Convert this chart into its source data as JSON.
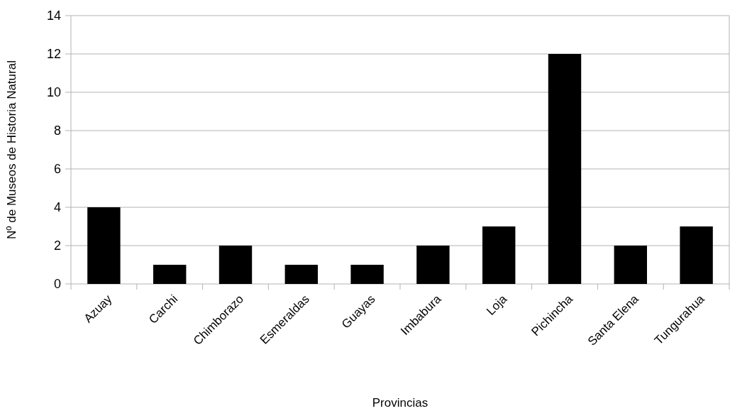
{
  "chart_data": {
    "type": "bar",
    "xlabel": "Provincias",
    "ylabel": "Nº de Museos de Historia Natural",
    "categories": [
      "Azuay",
      "Carchi",
      "Chimborazo",
      "Esmeraldas",
      "Guayas",
      "Imbabura",
      "Loja",
      "Pichincha",
      "Santa Elena",
      "Tungurahua"
    ],
    "values": [
      4,
      1,
      2,
      1,
      1,
      2,
      3,
      12,
      2,
      3
    ],
    "color": "#000000",
    "ylim": [
      0,
      14
    ],
    "yticks": [
      0,
      2,
      4,
      6,
      8,
      10,
      12,
      14
    ],
    "grid": "y"
  }
}
